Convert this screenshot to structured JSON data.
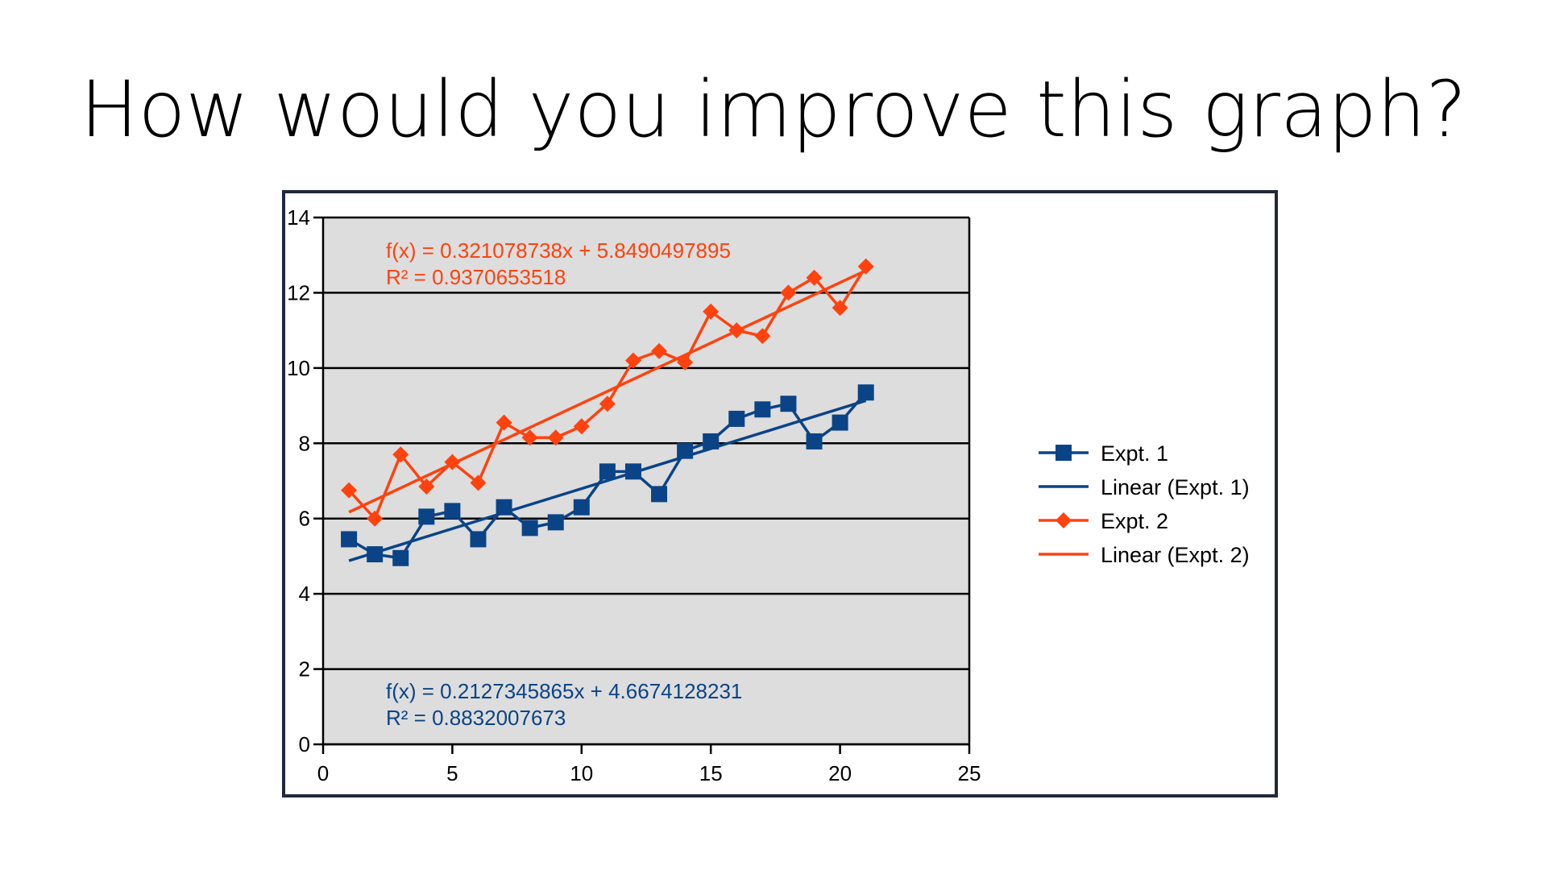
{
  "page": {
    "title": "How would you improve this graph?"
  },
  "colors": {
    "expt1": "#0a4487",
    "expt2": "#ff420e",
    "plot_background": "#dddddd",
    "frame_border": "#1e2a3a"
  },
  "chart_data": {
    "type": "line",
    "xlim": [
      0,
      25
    ],
    "ylim": [
      0,
      14
    ],
    "x_ticks": [
      0,
      5,
      10,
      15,
      20,
      25
    ],
    "y_ticks": [
      0,
      2,
      4,
      6,
      8,
      10,
      12,
      14
    ],
    "grid": "horizontal",
    "legend_position": "right",
    "x": [
      1,
      2,
      3,
      4,
      5,
      6,
      7,
      8,
      9,
      10,
      11,
      12,
      13,
      14,
      15,
      16,
      17,
      18,
      19,
      20,
      21
    ],
    "series": [
      {
        "name": "Expt. 1",
        "marker": "square",
        "color": "#0a4487",
        "values": [
          5.45,
          5.05,
          4.95,
          6.05,
          6.2,
          5.45,
          6.3,
          5.75,
          5.9,
          6.3,
          7.25,
          7.25,
          6.65,
          7.8,
          8.05,
          8.65,
          8.9,
          9.05,
          8.05,
          8.55,
          9.35
        ]
      },
      {
        "name": "Expt. 2",
        "marker": "diamond",
        "color": "#ff420e",
        "values": [
          6.75,
          6.0,
          7.7,
          6.85,
          7.5,
          6.95,
          8.55,
          8.15,
          8.15,
          8.45,
          9.05,
          10.2,
          10.45,
          10.15,
          11.5,
          11.0,
          10.85,
          12.0,
          12.4,
          11.6,
          12.7
        ]
      }
    ],
    "trendlines": [
      {
        "name": "Linear (Expt. 1)",
        "color": "#0a4487",
        "slope": 0.2127345865,
        "intercept": 4.6674128231,
        "x_range": [
          1,
          21
        ],
        "equation": "f(x) = 0.2127345865x + 4.6674128231",
        "r_squared": "R² = 0.8832007673"
      },
      {
        "name": "Linear (Expt. 2)",
        "color": "#ff420e",
        "slope": 0.321078738,
        "intercept": 5.8490497895,
        "x_range": [
          1,
          21
        ],
        "equation": "f(x) = 0.321078738x + 5.8490497895",
        "r_squared": "R² = 0.9370653518"
      }
    ],
    "legend": [
      {
        "label": "Expt. 1",
        "color": "#0a4487",
        "marker": "square"
      },
      {
        "label": "Linear (Expt. 1)",
        "color": "#0a4487",
        "marker": "none"
      },
      {
        "label": "Expt. 2",
        "color": "#ff420e",
        "marker": "diamond"
      },
      {
        "label": "Linear (Expt. 2)",
        "color": "#ff420e",
        "marker": "none"
      }
    ]
  }
}
